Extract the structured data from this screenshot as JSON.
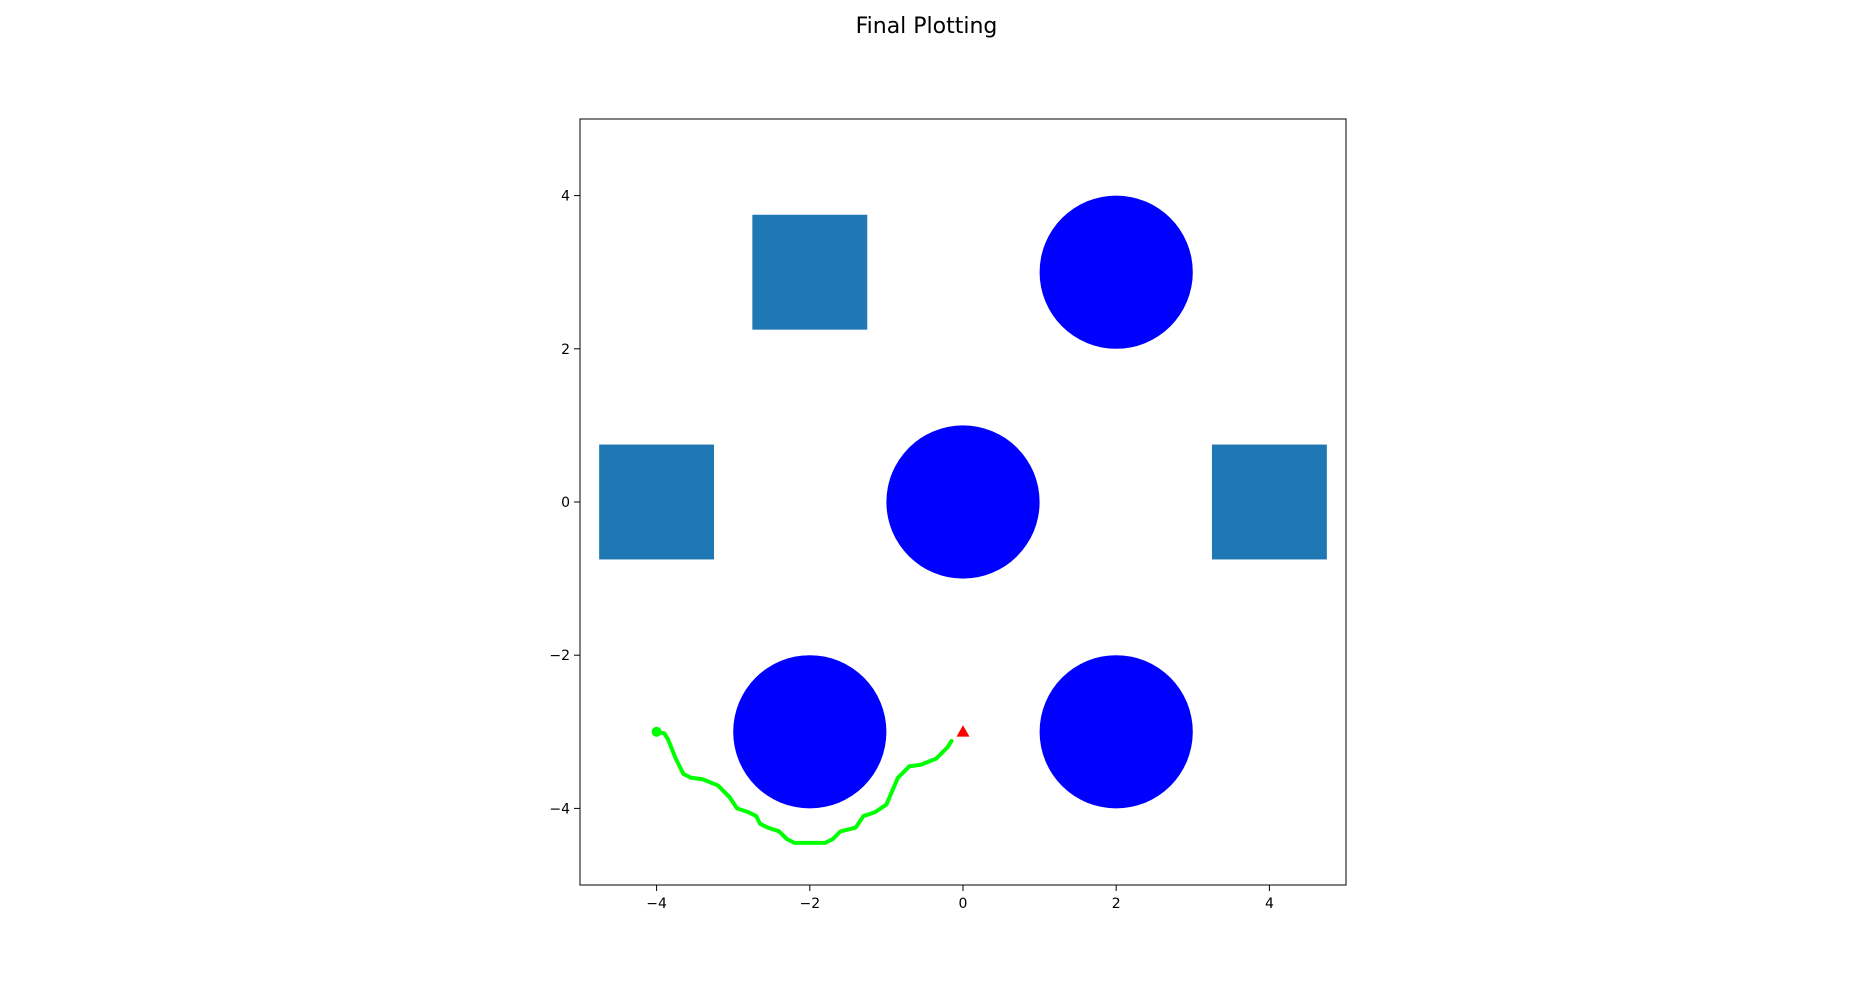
{
  "chart_data": {
    "type": "scatter",
    "title": "Final Plotting",
    "xlabel": "",
    "ylabel": "",
    "xlim": [
      -5,
      5
    ],
    "ylim": [
      -5,
      5
    ],
    "grid": false,
    "xticks": [
      -4,
      -2,
      0,
      2,
      4
    ],
    "yticks": [
      -4,
      -2,
      0,
      2,
      4
    ],
    "xtick_labels": [
      "−4",
      "−2",
      "0",
      "2",
      "4"
    ],
    "ytick_labels": [
      "−4",
      "−2",
      "0",
      "2",
      "4"
    ],
    "circle_obstacles": {
      "color": "#0000ff",
      "items": [
        {
          "x": 2,
          "y": 3,
          "r": 1
        },
        {
          "x": 0,
          "y": 0,
          "r": 1
        },
        {
          "x": -2,
          "y": -3,
          "r": 1
        },
        {
          "x": 2,
          "y": -3,
          "r": 1
        }
      ]
    },
    "square_obstacles": {
      "color": "#1f77b4",
      "items": [
        {
          "x": -2,
          "y": 3,
          "side": 1.5
        },
        {
          "x": -4,
          "y": 0,
          "side": 1.5
        },
        {
          "x": 4,
          "y": 0,
          "side": 1.5
        }
      ]
    },
    "path": {
      "color": "#00ff00",
      "points": [
        [
          -4.0,
          -3.0
        ],
        [
          -3.9,
          -3.02
        ],
        [
          -3.85,
          -3.1
        ],
        [
          -3.75,
          -3.35
        ],
        [
          -3.65,
          -3.55
        ],
        [
          -3.55,
          -3.6
        ],
        [
          -3.4,
          -3.62
        ],
        [
          -3.2,
          -3.7
        ],
        [
          -3.05,
          -3.85
        ],
        [
          -2.95,
          -4.0
        ],
        [
          -2.8,
          -4.05
        ],
        [
          -2.7,
          -4.1
        ],
        [
          -2.65,
          -4.2
        ],
        [
          -2.55,
          -4.25
        ],
        [
          -2.4,
          -4.3
        ],
        [
          -2.3,
          -4.4
        ],
        [
          -2.2,
          -4.45
        ],
        [
          -1.8,
          -4.45
        ],
        [
          -1.7,
          -4.4
        ],
        [
          -1.6,
          -4.3
        ],
        [
          -1.4,
          -4.25
        ],
        [
          -1.3,
          -4.1
        ],
        [
          -1.15,
          -4.05
        ],
        [
          -1.0,
          -3.95
        ],
        [
          -0.85,
          -3.6
        ],
        [
          -0.7,
          -3.45
        ],
        [
          -0.55,
          -3.43
        ],
        [
          -0.35,
          -3.35
        ],
        [
          -0.2,
          -3.2
        ],
        [
          -0.15,
          -3.12
        ]
      ]
    },
    "start": {
      "x": -4,
      "y": -3,
      "color": "#00ff00",
      "marker": "circle"
    },
    "goal": {
      "x": 0,
      "y": -3,
      "color": "#ff0000",
      "marker": "triangle"
    }
  }
}
